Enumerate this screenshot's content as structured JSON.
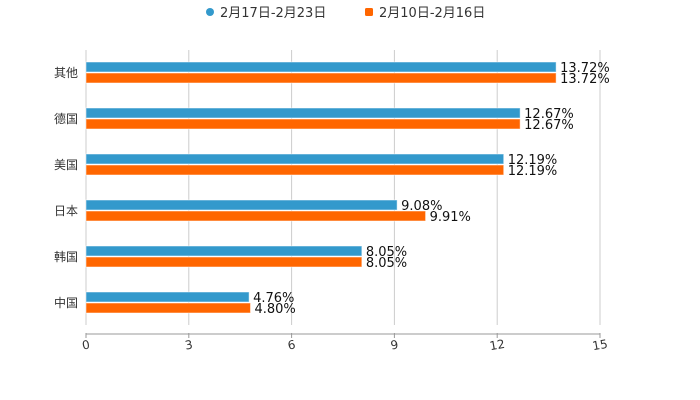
{
  "chart_data": {
    "type": "bar",
    "orientation": "horizontal",
    "categories": [
      "其他",
      "德国",
      "美国",
      "日本",
      "韩国",
      "中国"
    ],
    "series": [
      {
        "name": "2月17日-2月23日",
        "color": "#3399CC",
        "values": [
          13.72,
          12.67,
          12.19,
          9.08,
          8.05,
          4.76
        ],
        "labels": [
          "13.72%",
          "12.67%",
          "12.19%",
          "9.08%",
          "8.05%",
          "4.76%"
        ]
      },
      {
        "name": "2月10日-2月16日",
        "color": "#FF6600",
        "values": [
          13.72,
          12.67,
          12.19,
          9.91,
          8.05,
          4.8
        ],
        "labels": [
          "13.72%",
          "12.67%",
          "12.19%",
          "9.91%",
          "8.05%",
          "4.80%"
        ]
      }
    ],
    "xlim": [
      0,
      15
    ],
    "xticks": [
      "0",
      "3",
      "6",
      "9",
      "12",
      "15"
    ],
    "grid": true,
    "legend_position": "top-center",
    "title": "",
    "xlabel": "",
    "ylabel": ""
  }
}
